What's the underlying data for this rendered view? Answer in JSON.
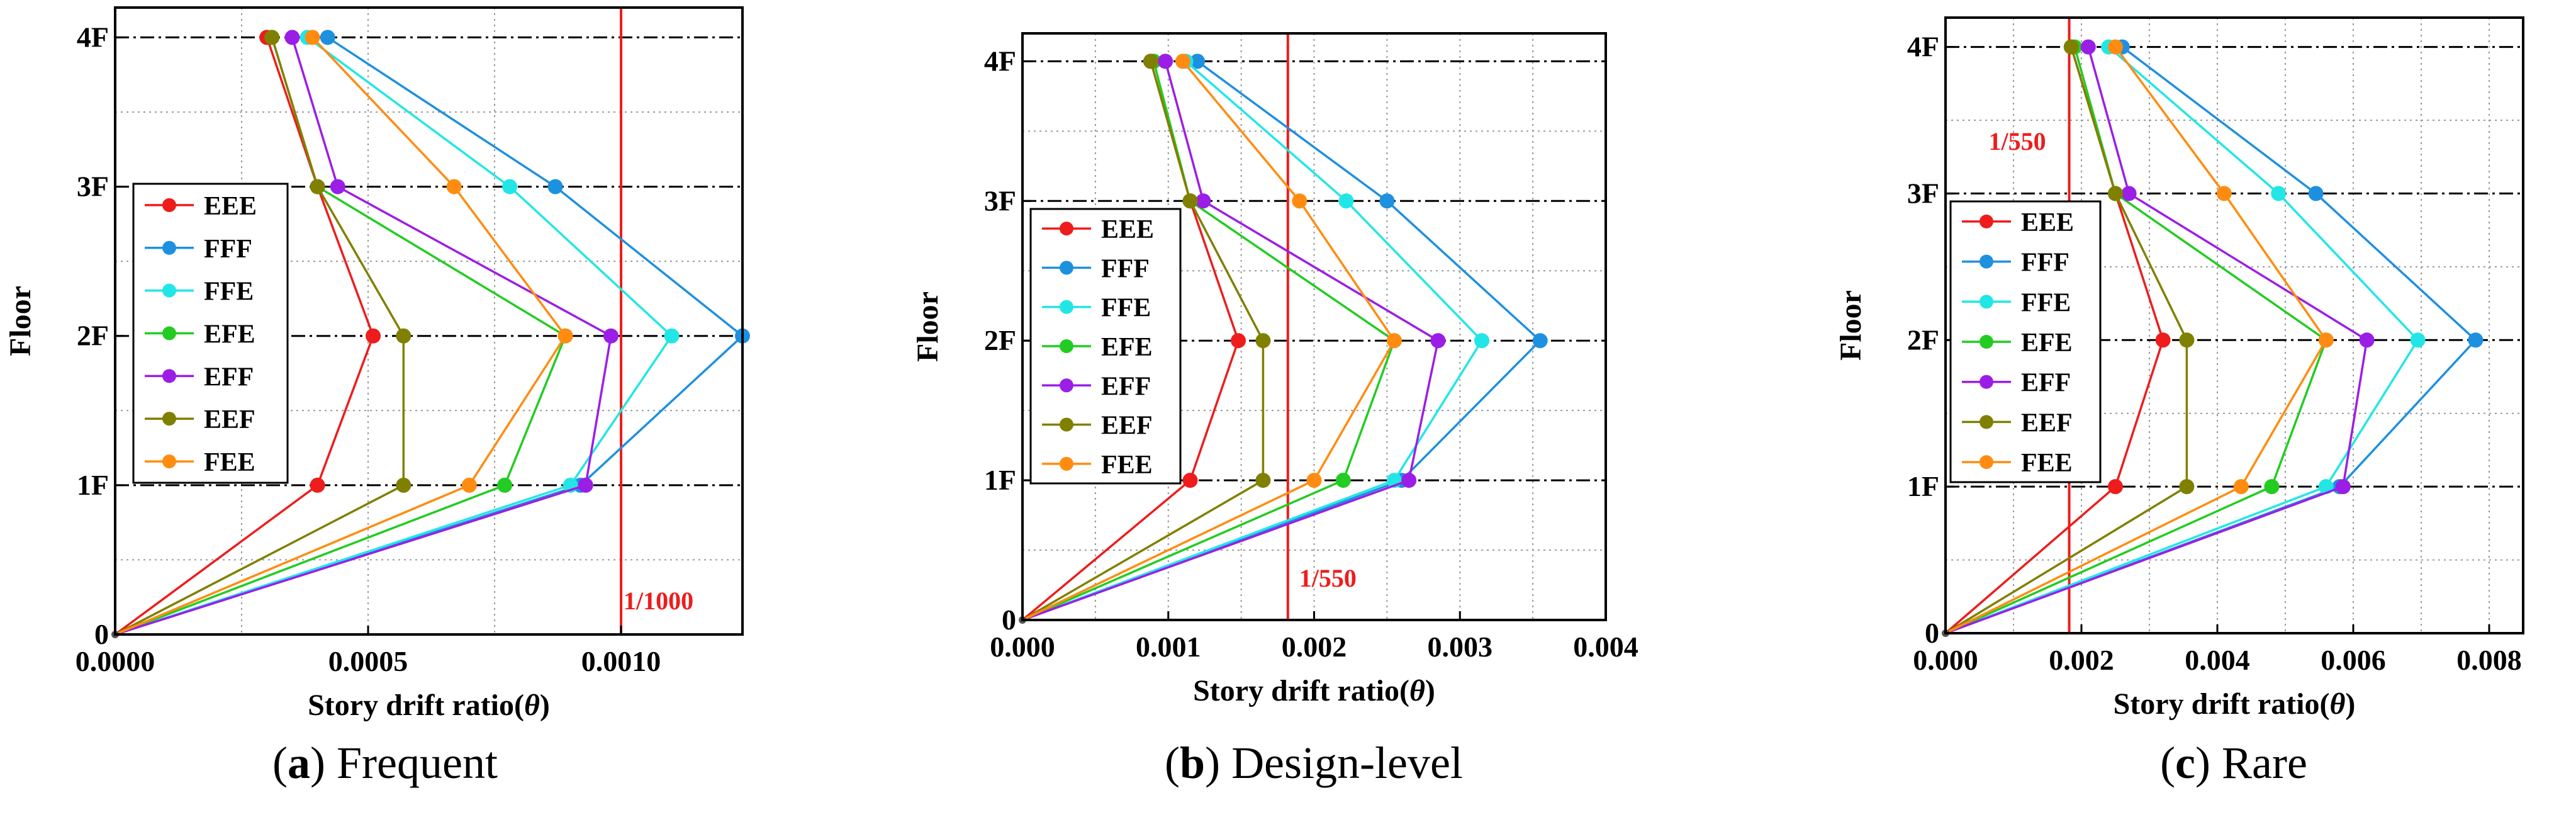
{
  "figure": {
    "series_colors": {
      "EEE": "#ee1c1c",
      "FFF": "#1e90e0",
      "FFE": "#22e6e6",
      "EFE": "#22cc22",
      "EFF": "#9b1ee6",
      "EEF": "#808000",
      "FEE": "#ff8c10"
    },
    "reference_line_color": "#ee1c1c"
  },
  "chart_data": [
    {
      "type": "line",
      "panel_label": "a",
      "caption_text": "Frequent",
      "xlabel_text": "Story drift ratio(",
      "xlabel_symbol": "θ",
      "xlabel_close": ")",
      "ylabel": "Floor",
      "xlim": [
        0,
        0.00124
      ],
      "ylim": [
        0,
        4.2
      ],
      "x_ticks": [
        0,
        0.0005,
        0.001
      ],
      "x_tick_labels": [
        "0.0000",
        "0.0005",
        "0.0010"
      ],
      "y_ticks": [
        0,
        1,
        2,
        3,
        4
      ],
      "y_tick_labels": [
        "0",
        "1F",
        "2F",
        "3F",
        "4F"
      ],
      "reference_line": {
        "x": 0.001,
        "label": "1/1000"
      },
      "floors": [
        0,
        1,
        2,
        3,
        4
      ],
      "series": [
        {
          "name": "EEE",
          "values": [
            0,
            0.0004,
            0.00051,
            0.0004,
            0.0003
          ]
        },
        {
          "name": "FFF",
          "values": [
            0,
            0.00092,
            0.00124,
            0.00087,
            0.00042
          ]
        },
        {
          "name": "FFE",
          "values": [
            0,
            0.0009,
            0.0011,
            0.00078,
            0.00038
          ]
        },
        {
          "name": "EFE",
          "values": [
            0,
            0.00077,
            0.00089,
            0.0004,
            0.00031
          ]
        },
        {
          "name": "EFF",
          "values": [
            0,
            0.00093,
            0.00098,
            0.00044,
            0.00035
          ]
        },
        {
          "name": "EEF",
          "values": [
            0,
            0.00057,
            0.00057,
            0.0004,
            0.00031
          ]
        },
        {
          "name": "FEE",
          "values": [
            0,
            0.0007,
            0.00089,
            0.00067,
            0.00039
          ]
        }
      ]
    },
    {
      "type": "line",
      "panel_label": "b",
      "caption_text": "Design-level",
      "xlabel_text": "Story drift ratio(",
      "xlabel_symbol": "θ",
      "xlabel_close": ")",
      "ylabel": "Floor",
      "xlim": [
        0,
        0.004
      ],
      "ylim": [
        0,
        4.2
      ],
      "x_ticks": [
        0,
        0.001,
        0.002,
        0.003,
        0.004
      ],
      "x_tick_labels": [
        "0.000",
        "0.001",
        "0.002",
        "0.003",
        "0.004"
      ],
      "y_ticks": [
        0,
        1,
        2,
        3,
        4
      ],
      "y_tick_labels": [
        "0",
        "1F",
        "2F",
        "3F",
        "4F"
      ],
      "reference_line": {
        "x": 0.00182,
        "label": "1/550"
      },
      "floors": [
        0,
        1,
        2,
        3,
        4
      ],
      "series": [
        {
          "name": "EEE",
          "values": [
            0,
            0.00115,
            0.00148,
            0.00115,
            0.00088
          ]
        },
        {
          "name": "FFF",
          "values": [
            0,
            0.0026,
            0.00355,
            0.0025,
            0.0012
          ]
        },
        {
          "name": "FFE",
          "values": [
            0,
            0.00255,
            0.00315,
            0.00222,
            0.00112
          ]
        },
        {
          "name": "EFE",
          "values": [
            0,
            0.0022,
            0.00255,
            0.00115,
            0.0009
          ]
        },
        {
          "name": "EFF",
          "values": [
            0,
            0.00265,
            0.00285,
            0.00124,
            0.00098
          ]
        },
        {
          "name": "EEF",
          "values": [
            0,
            0.00165,
            0.00165,
            0.00115,
            0.00088
          ]
        },
        {
          "name": "FEE",
          "values": [
            0,
            0.002,
            0.00255,
            0.0019,
            0.0011
          ]
        }
      ]
    },
    {
      "type": "line",
      "panel_label": "c",
      "caption_text": "Rare",
      "xlabel_text": "Story drift ratio(",
      "xlabel_symbol": "θ",
      "xlabel_close": ")",
      "ylabel": "Floor",
      "xlim": [
        0,
        0.0085
      ],
      "ylim": [
        0,
        4.2
      ],
      "x_ticks": [
        0,
        0.002,
        0.004,
        0.006,
        0.008
      ],
      "x_tick_labels": [
        "0.000",
        "0.002",
        "0.004",
        "0.006",
        "0.008"
      ],
      "y_ticks": [
        0,
        1,
        2,
        3,
        4
      ],
      "y_tick_labels": [
        "0",
        "1F",
        "2F",
        "3F",
        "4F"
      ],
      "reference_line": {
        "x": 0.00182,
        "label": "1/550"
      },
      "floors": [
        0,
        1,
        2,
        3,
        4
      ],
      "series": [
        {
          "name": "EEE",
          "values": [
            0,
            0.0025,
            0.0032,
            0.0025,
            0.00185
          ]
        },
        {
          "name": "FFF",
          "values": [
            0,
            0.0058,
            0.0078,
            0.00545,
            0.0026
          ]
        },
        {
          "name": "FFE",
          "values": [
            0,
            0.0056,
            0.00695,
            0.0049,
            0.0024
          ]
        },
        {
          "name": "EFE",
          "values": [
            0,
            0.0048,
            0.0056,
            0.0025,
            0.0019
          ]
        },
        {
          "name": "EFF",
          "values": [
            0,
            0.00585,
            0.0062,
            0.0027,
            0.0021
          ]
        },
        {
          "name": "EEF",
          "values": [
            0,
            0.00355,
            0.00355,
            0.0025,
            0.00185
          ]
        },
        {
          "name": "FEE",
          "values": [
            0,
            0.00435,
            0.0056,
            0.0041,
            0.0025
          ]
        }
      ]
    }
  ]
}
